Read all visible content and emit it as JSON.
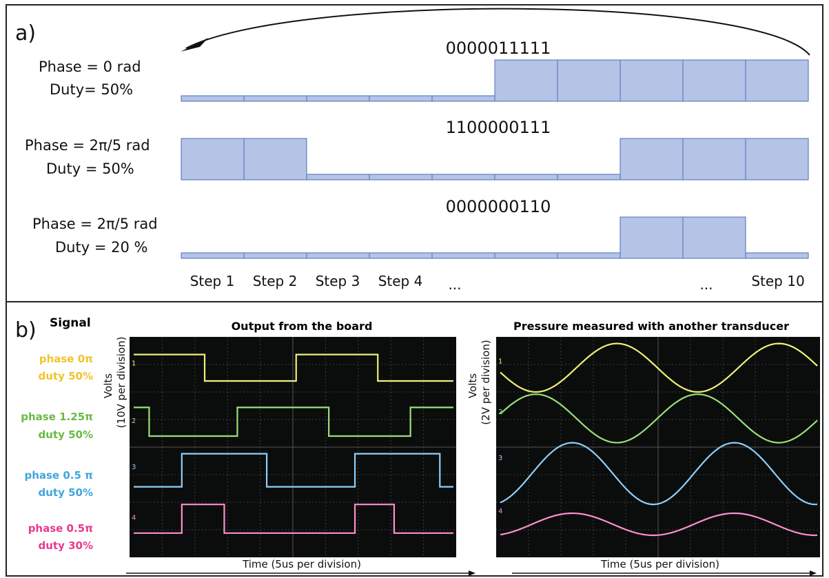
{
  "panel_a": {
    "label": "a)",
    "rows": [
      {
        "phase": "Phase = 0 rad",
        "duty": "Duty= 50%",
        "pattern": "0000011111"
      },
      {
        "phase": "Phase = 2π/5 rad",
        "duty": "Duty = 50%",
        "pattern": "1100000111"
      },
      {
        "phase": "Phase = 2π/5 rad",
        "duty": "Duty = 20 %",
        "pattern": "0000000110"
      }
    ],
    "step_labels": [
      "Step 1",
      "Step 2",
      "Step 3",
      "Step 4",
      "...",
      "...",
      "Step 10"
    ],
    "bar_color": "#b4c3e6",
    "bar_stroke": "#4a6fb5"
  },
  "panel_b": {
    "label": "b)",
    "signal_header": "Signal",
    "signals": [
      {
        "line1": "phase 0π",
        "line2": "duty 50%",
        "color": "#f2c32a",
        "trace": "#f0f07a"
      },
      {
        "line1": "phase 1.25π",
        "line2": "duty 50%",
        "color": "#6aba44",
        "trace": "#9be07a"
      },
      {
        "line1": "phase 0.5 π",
        "line2": "duty 50%",
        "color": "#41a6df",
        "trace": "#8ed0ff"
      },
      {
        "line1": "phase 0.5π",
        "line2": "duty 30%",
        "color": "#e8398e",
        "trace": "#ff8fd0"
      }
    ],
    "left_scope": {
      "title": "Output from the board",
      "ylabel": "Volts",
      "yunit": "(10V per division)",
      "xlabel": "Time (5us per division)",
      "channel_markers": [
        "1",
        "2",
        "3",
        "4"
      ]
    },
    "right_scope": {
      "title": "Pressure measured with another transducer",
      "ylabel": "Volts",
      "yunit": "(2V per division)",
      "xlabel": "Time (5us per division)",
      "channel_markers": [
        "1",
        "2",
        "3",
        "4"
      ]
    }
  }
}
